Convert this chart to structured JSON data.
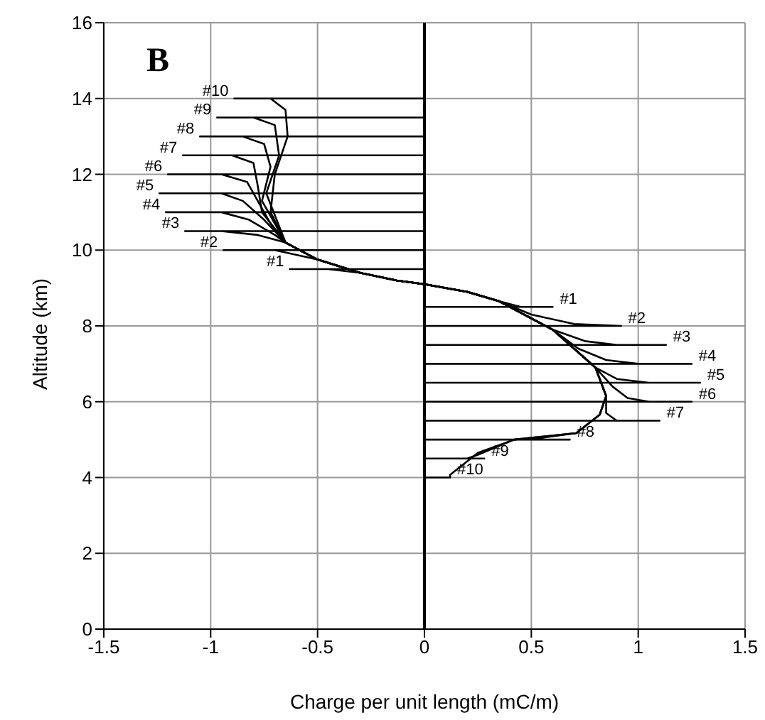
{
  "chart_data": {
    "type": "line",
    "xlabel": "Charge per unit length (mC/m)",
    "ylabel": "Altitude (km)",
    "xlim": [
      -1.5,
      1.5
    ],
    "xticks": [
      -1.5,
      -1,
      -0.5,
      0,
      0.5,
      1,
      1.5
    ],
    "ylim": [
      0,
      16
    ],
    "yticks": [
      0,
      2,
      4,
      6,
      8,
      10,
      12,
      14,
      16
    ],
    "grid": true,
    "marker": "none",
    "line_style": "solid",
    "ref_lines": [
      {
        "axis": "x",
        "value": 0,
        "color": "#000000"
      }
    ],
    "series": [
      {
        "name": "#1",
        "color": "#000000",
        "x": [
          0,
          -0.63,
          -0.45,
          -0.3,
          -0.13,
          0,
          0.2,
          0.35,
          0.45,
          0.6,
          0
        ],
        "values": [
          9.5,
          9.5,
          9.5,
          9.4,
          9.2,
          9.1,
          8.9,
          8.65,
          8.5,
          8.5,
          8.5
        ]
      },
      {
        "name": "#2",
        "color": "#000000",
        "x": [
          0,
          -0.94,
          -0.7,
          -0.5,
          -0.3,
          -0.13,
          0,
          0.2,
          0.35,
          0.5,
          0.7,
          0.92,
          0
        ],
        "values": [
          10,
          10,
          10,
          9.75,
          9.4,
          9.2,
          9.1,
          8.9,
          8.65,
          8.3,
          8.05,
          8,
          8
        ]
      },
      {
        "name": "#3",
        "color": "#000000",
        "x": [
          0,
          -1.12,
          -0.95,
          -0.78,
          -0.65,
          -0.5,
          -0.3,
          -0.13,
          0,
          0.2,
          0.35,
          0.6,
          0.75,
          0.9,
          1.13,
          0
        ],
        "values": [
          10.5,
          10.5,
          10.5,
          10.4,
          10.2,
          9.75,
          9.4,
          9.2,
          9.1,
          8.9,
          8.65,
          7.9,
          7.6,
          7.5,
          7.5,
          7.5
        ]
      },
      {
        "name": "#4",
        "color": "#000000",
        "x": [
          0,
          -1.21,
          -0.95,
          -0.82,
          -0.7,
          -0.65,
          -0.5,
          -0.3,
          -0.13,
          0,
          0.2,
          0.35,
          0.6,
          0.72,
          0.85,
          1,
          1.25,
          0
        ],
        "values": [
          11,
          11,
          11,
          10.8,
          10.4,
          10.2,
          9.75,
          9.4,
          9.2,
          9.1,
          8.9,
          8.65,
          7.9,
          7.4,
          7.1,
          7,
          7,
          7
        ]
      },
      {
        "name": "#5",
        "color": "#000000",
        "x": [
          0,
          -1.24,
          -0.95,
          -0.85,
          -0.75,
          -0.65,
          -0.5,
          -0.3,
          -0.13,
          0,
          0.2,
          0.35,
          0.6,
          0.8,
          0.9,
          1.05,
          1.29,
          0
        ],
        "values": [
          11.5,
          11.5,
          11.5,
          11.3,
          10.8,
          10.2,
          9.75,
          9.4,
          9.2,
          9.1,
          8.9,
          8.65,
          7.9,
          6.9,
          6.6,
          6.5,
          6.5,
          6.5
        ]
      },
      {
        "name": "#6",
        "color": "#000000",
        "x": [
          0,
          -1.2,
          -0.95,
          -0.83,
          -0.78,
          -0.72,
          -0.65,
          -0.5,
          -0.3,
          -0.13,
          0,
          0.2,
          0.35,
          0.6,
          0.8,
          0.88,
          0.95,
          1.05,
          1.25,
          0
        ],
        "values": [
          12,
          12,
          12,
          11.8,
          11.3,
          10.7,
          10.2,
          9.75,
          9.4,
          9.2,
          9.1,
          8.9,
          8.65,
          7.9,
          6.9,
          6.4,
          6.1,
          6,
          6,
          6
        ]
      },
      {
        "name": "#7",
        "color": "#000000",
        "x": [
          0,
          -1.13,
          -0.9,
          -0.8,
          -0.78,
          -0.76,
          -0.65,
          -0.5,
          -0.3,
          -0.13,
          0,
          0.2,
          0.35,
          0.6,
          0.8,
          0.85,
          0.85,
          0.9,
          1.1,
          0
        ],
        "values": [
          12.5,
          12.5,
          12.5,
          12.3,
          11.7,
          11,
          10.2,
          9.75,
          9.4,
          9.2,
          9.1,
          8.9,
          8.65,
          7.9,
          6.9,
          6.15,
          5.7,
          5.5,
          5.5,
          5.5
        ]
      },
      {
        "name": "#8",
        "color": "#000000",
        "x": [
          0,
          -1.05,
          -0.85,
          -0.75,
          -0.72,
          -0.76,
          -0.65,
          -0.5,
          -0.3,
          -0.13,
          0,
          0.2,
          0.35,
          0.6,
          0.8,
          0.85,
          0.82,
          0.71,
          0.55,
          0.5,
          0.68,
          0
        ],
        "values": [
          13,
          13,
          13,
          12.8,
          12.2,
          11.3,
          10.2,
          9.75,
          9.4,
          9.2,
          9.1,
          8.9,
          8.65,
          7.9,
          6.9,
          6.15,
          5.66,
          5.17,
          5.05,
          5,
          5,
          5
        ]
      },
      {
        "name": "#9",
        "color": "#000000",
        "x": [
          0,
          -0.97,
          -0.8,
          -0.7,
          -0.68,
          -0.74,
          -0.65,
          -0.5,
          -0.3,
          -0.13,
          0,
          0.2,
          0.35,
          0.6,
          0.8,
          0.85,
          0.82,
          0.71,
          0.42,
          0.25,
          0.2,
          0.28,
          0
        ],
        "values": [
          13.5,
          13.5,
          13.5,
          13.3,
          12.5,
          11.5,
          10.2,
          9.75,
          9.4,
          9.2,
          9.1,
          8.9,
          8.65,
          7.9,
          6.9,
          6.15,
          5.66,
          5.17,
          5,
          4.6,
          4.5,
          4.5,
          4.5
        ]
      },
      {
        "name": "#10",
        "color": "#000000",
        "x": [
          0,
          -0.89,
          -0.72,
          -0.65,
          -0.64,
          -0.7,
          -0.72,
          -0.65,
          -0.5,
          -0.3,
          -0.13,
          0,
          0.2,
          0.35,
          0.6,
          0.8,
          0.85,
          0.82,
          0.71,
          0.42,
          0.25,
          0.12,
          0.12,
          0
        ],
        "values": [
          14,
          14,
          14,
          13.7,
          13,
          12,
          11,
          10.2,
          9.75,
          9.4,
          9.2,
          9.1,
          8.9,
          8.65,
          7.9,
          6.9,
          6.15,
          5.66,
          5.17,
          5,
          4.65,
          4.07,
          4,
          4
        ]
      }
    ],
    "annotations": [
      "B"
    ]
  }
}
